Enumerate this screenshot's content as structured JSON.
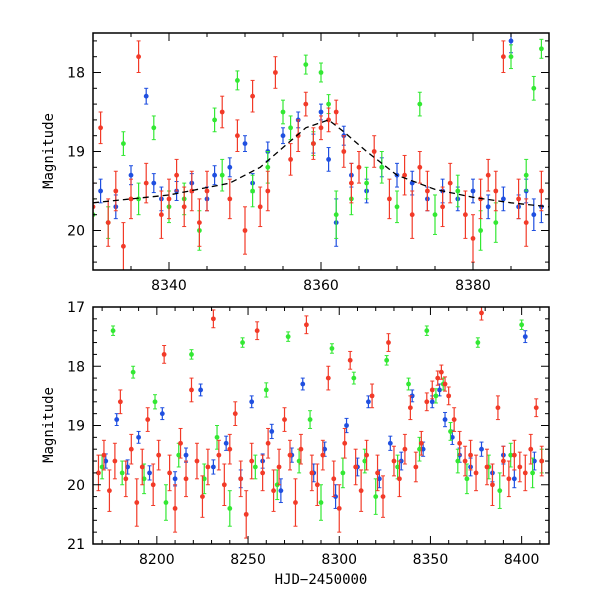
{
  "colors": {
    "blue": "#1f4fe0",
    "green": "#33e833",
    "red": "#f23a28",
    "fit": "#000000"
  },
  "chart_data": [
    {
      "type": "scatter",
      "title": "",
      "xlabel": "",
      "ylabel": "Magnitude",
      "xlim": [
        8330,
        8390
      ],
      "ylim": [
        20.5,
        17.5
      ],
      "y_inverted": true,
      "grid": false,
      "x_ticks": [
        8340,
        8360,
        8380
      ],
      "y_ticks": [
        18,
        19,
        20
      ],
      "x_tick_labels": [
        "8340",
        "8360",
        "8380"
      ],
      "y_tick_labels": [
        "18",
        "19",
        "20"
      ],
      "fit_curve": {
        "x": [
          8330,
          8340,
          8348,
          8352,
          8355,
          8358,
          8361,
          8363,
          8366,
          8370,
          8375,
          8380,
          8385,
          8390
        ],
        "y": [
          19.65,
          19.55,
          19.4,
          19.2,
          18.95,
          18.7,
          18.6,
          18.75,
          19.0,
          19.3,
          19.48,
          19.58,
          19.65,
          19.7
        ]
      },
      "series": [
        {
          "color": "blue",
          "x": [
            8331,
            8333,
            8335,
            8337,
            8338,
            8339,
            8341,
            8343,
            8345,
            8346,
            8348,
            8350,
            8351,
            8353,
            8355,
            8357,
            8359,
            8360,
            8361,
            8362,
            8363,
            8364,
            8366,
            8368,
            8370,
            8372,
            8374,
            8376,
            8378,
            8380,
            8382,
            8384,
            8385,
            8386,
            8387,
            8388,
            8389
          ],
          "y": [
            19.5,
            19.7,
            19.3,
            18.3,
            19.4,
            19.6,
            19.5,
            19.4,
            19.6,
            19.3,
            19.2,
            18.9,
            19.4,
            19.0,
            18.8,
            18.6,
            18.9,
            18.5,
            19.1,
            19.9,
            18.8,
            19.3,
            19.5,
            19.2,
            19.3,
            19.4,
            19.6,
            19.5,
            19.6,
            19.5,
            19.7,
            19.6,
            17.6,
            19.7,
            19.5,
            19.8,
            19.7
          ],
          "err": [
            0.15,
            0.15,
            0.12,
            0.1,
            0.12,
            0.15,
            0.12,
            0.12,
            0.15,
            0.12,
            0.12,
            0.1,
            0.12,
            0.12,
            0.1,
            0.1,
            0.12,
            0.1,
            0.15,
            0.3,
            0.12,
            0.15,
            0.15,
            0.12,
            0.15,
            0.15,
            0.15,
            0.15,
            0.15,
            0.15,
            0.15,
            0.15,
            0.15,
            0.15,
            0.15,
            0.2,
            0.2
          ]
        },
        {
          "color": "green",
          "x": [
            8330,
            8332,
            8334,
            8336,
            8338,
            8340,
            8342,
            8344,
            8346,
            8347,
            8349,
            8351,
            8353,
            8355,
            8356,
            8358,
            8359,
            8360,
            8361,
            8362,
            8364,
            8366,
            8368,
            8370,
            8373,
            8375,
            8378,
            8381,
            8383,
            8385,
            8387,
            8388,
            8389
          ],
          "y": [
            19.8,
            19.9,
            18.9,
            19.6,
            18.7,
            19.7,
            19.6,
            20.0,
            18.6,
            19.3,
            18.1,
            19.5,
            19.2,
            18.5,
            18.7,
            17.9,
            18.9,
            18.0,
            18.4,
            19.8,
            19.6,
            19.4,
            19.2,
            19.7,
            18.4,
            19.8,
            19.5,
            20.0,
            19.9,
            17.8,
            19.3,
            18.2,
            17.7
          ],
          "err": [
            0.2,
            0.2,
            0.15,
            0.2,
            0.15,
            0.2,
            0.2,
            0.25,
            0.15,
            0.2,
            0.12,
            0.2,
            0.2,
            0.15,
            0.15,
            0.12,
            0.15,
            0.12,
            0.12,
            0.3,
            0.2,
            0.2,
            0.2,
            0.2,
            0.15,
            0.25,
            0.2,
            0.25,
            0.25,
            0.15,
            0.2,
            0.15,
            0.12
          ]
        },
        {
          "color": "red",
          "x": [
            8330,
            8331,
            8332,
            8333,
            8334,
            8335,
            8336,
            8337,
            8339,
            8340,
            8341,
            8342,
            8343,
            8344,
            8345,
            8347,
            8348,
            8349,
            8350,
            8351,
            8352,
            8353,
            8354,
            8356,
            8357,
            8358,
            8359,
            8360,
            8361,
            8362,
            8363,
            8364,
            8365,
            8367,
            8369,
            8371,
            8372,
            8373,
            8374,
            8376,
            8377,
            8379,
            8380,
            8381,
            8382,
            8383,
            8384,
            8386,
            8387,
            8389
          ],
          "y": [
            19.7,
            18.7,
            19.9,
            19.5,
            20.2,
            19.6,
            17.8,
            19.4,
            19.8,
            19.6,
            19.3,
            19.7,
            19.5,
            19.9,
            19.5,
            18.5,
            19.6,
            18.8,
            20.0,
            18.3,
            19.7,
            19.5,
            18.0,
            19.1,
            18.8,
            18.4,
            18.9,
            18.7,
            18.6,
            18.5,
            19.0,
            19.4,
            19.2,
            19.0,
            19.6,
            19.3,
            19.8,
            19.2,
            19.5,
            19.7,
            19.4,
            19.8,
            20.1,
            19.6,
            19.3,
            19.5,
            17.8,
            19.6,
            19.9,
            19.5
          ],
          "err": [
            0.3,
            0.2,
            0.3,
            0.25,
            0.3,
            0.25,
            0.2,
            0.25,
            0.3,
            0.25,
            0.2,
            0.25,
            0.25,
            0.3,
            0.25,
            0.2,
            0.25,
            0.2,
            0.3,
            0.2,
            0.25,
            0.25,
            0.2,
            0.2,
            0.2,
            0.15,
            0.2,
            0.15,
            0.15,
            0.15,
            0.2,
            0.25,
            0.2,
            0.2,
            0.25,
            0.25,
            0.3,
            0.2,
            0.25,
            0.25,
            0.25,
            0.3,
            0.3,
            0.25,
            0.2,
            0.25,
            0.2,
            0.25,
            0.3,
            0.25
          ]
        }
      ]
    },
    {
      "type": "scatter",
      "title": "",
      "xlabel": "HJD−2450000",
      "ylabel": "Magnitude",
      "xlim": [
        8165,
        8415
      ],
      "ylim": [
        21,
        17
      ],
      "y_inverted": true,
      "grid": false,
      "x_ticks": [
        8200,
        8250,
        8300,
        8350,
        8400
      ],
      "y_ticks": [
        17,
        18,
        19,
        20,
        21
      ],
      "x_tick_labels": [
        "8200",
        "8250",
        "8300",
        "8350",
        "8400"
      ],
      "y_tick_labels": [
        "17",
        "18",
        "19",
        "20",
        "21"
      ],
      "series": [
        {
          "color": "blue",
          "x": [
            8172,
            8178,
            8184,
            8190,
            8196,
            8203,
            8210,
            8216,
            8224,
            8231,
            8238,
            8246,
            8252,
            8258,
            8263,
            8268,
            8274,
            8280,
            8286,
            8292,
            8298,
            8304,
            8310,
            8316,
            8322,
            8328,
            8334,
            8340,
            8346,
            8351,
            8355,
            8358,
            8362,
            8366,
            8372,
            8378,
            8384,
            8390,
            8396,
            8402,
            8407
          ],
          "y": [
            19.6,
            18.9,
            19.7,
            19.2,
            19.8,
            18.8,
            19.9,
            19.5,
            18.4,
            19.7,
            19.3,
            19.9,
            18.6,
            19.6,
            19.1,
            20.1,
            19.5,
            18.3,
            19.8,
            19.4,
            20.2,
            19.0,
            19.7,
            18.6,
            19.9,
            19.3,
            19.6,
            18.5,
            19.4,
            18.6,
            18.4,
            18.9,
            19.2,
            19.5,
            19.7,
            19.4,
            19.8,
            19.5,
            19.9,
            17.5,
            19.6
          ],
          "err": [
            0.12,
            0.1,
            0.12,
            0.1,
            0.12,
            0.1,
            0.12,
            0.12,
            0.1,
            0.12,
            0.12,
            0.15,
            0.1,
            0.12,
            0.12,
            0.2,
            0.12,
            0.1,
            0.15,
            0.12,
            0.2,
            0.12,
            0.15,
            0.1,
            0.15,
            0.12,
            0.15,
            0.1,
            0.12,
            0.1,
            0.1,
            0.12,
            0.12,
            0.12,
            0.15,
            0.12,
            0.15,
            0.15,
            0.15,
            0.1,
            0.15
          ]
        },
        {
          "color": "green",
          "x": [
            8170,
            8176,
            8181,
            8187,
            8193,
            8199,
            8205,
            8212,
            8219,
            8226,
            8233,
            8240,
            8247,
            8254,
            8260,
            8266,
            8272,
            8278,
            8284,
            8290,
            8296,
            8302,
            8308,
            8314,
            8320,
            8326,
            8332,
            8338,
            8344,
            8348,
            8353,
            8357,
            8361,
            8365,
            8370,
            8376,
            8382,
            8388,
            8394,
            8400,
            8406,
            8411
          ],
          "y": [
            19.7,
            17.4,
            19.8,
            18.1,
            19.9,
            18.6,
            20.3,
            19.5,
            17.8,
            19.9,
            19.2,
            20.4,
            17.6,
            19.7,
            18.4,
            20.0,
            17.5,
            19.6,
            18.9,
            20.3,
            17.7,
            19.8,
            18.2,
            19.6,
            20.2,
            17.9,
            19.7,
            18.3,
            19.4,
            17.4,
            18.5,
            18.3,
            19.1,
            19.6,
            19.9,
            17.6,
            19.7,
            20.1,
            19.5,
            17.3,
            19.8,
            19.6
          ],
          "err": [
            0.2,
            0.08,
            0.2,
            0.1,
            0.25,
            0.12,
            0.3,
            0.2,
            0.08,
            0.25,
            0.2,
            0.3,
            0.08,
            0.2,
            0.12,
            0.25,
            0.08,
            0.2,
            0.15,
            0.3,
            0.08,
            0.25,
            0.1,
            0.2,
            0.3,
            0.08,
            0.2,
            0.1,
            0.2,
            0.08,
            0.12,
            0.1,
            0.15,
            0.2,
            0.25,
            0.08,
            0.2,
            0.3,
            0.2,
            0.08,
            0.25,
            0.2
          ]
        },
        {
          "color": "red",
          "x": [
            8168,
            8171,
            8174,
            8177,
            8180,
            8183,
            8186,
            8189,
            8192,
            8195,
            8198,
            8201,
            8204,
            8207,
            8210,
            8213,
            8216,
            8219,
            8222,
            8225,
            8228,
            8231,
            8234,
            8237,
            8240,
            8243,
            8246,
            8249,
            8252,
            8255,
            8258,
            8261,
            8264,
            8267,
            8270,
            8273,
            8276,
            8279,
            8282,
            8285,
            8288,
            8291,
            8294,
            8297,
            8300,
            8303,
            8306,
            8309,
            8312,
            8315,
            8318,
            8321,
            8324,
            8327,
            8330,
            8333,
            8336,
            8339,
            8342,
            8345,
            8348,
            8351,
            8354,
            8356,
            8358,
            8360,
            8363,
            8366,
            8369,
            8372,
            8375,
            8378,
            8381,
            8384,
            8387,
            8390,
            8393,
            8396,
            8399,
            8402,
            8405,
            8408,
            8411
          ],
          "y": [
            19.8,
            19.5,
            20.1,
            19.6,
            18.6,
            19.9,
            19.4,
            20.3,
            19.7,
            18.9,
            20.0,
            19.5,
            17.8,
            19.8,
            20.4,
            19.3,
            19.9,
            18.4,
            19.6,
            20.2,
            19.7,
            17.2,
            19.5,
            20.0,
            19.4,
            18.8,
            19.9,
            20.5,
            19.6,
            17.4,
            19.8,
            19.3,
            20.1,
            19.7,
            18.9,
            19.5,
            20.3,
            19.4,
            17.3,
            19.8,
            20.0,
            19.5,
            18.2,
            19.9,
            20.4,
            19.3,
            17.9,
            19.7,
            20.1,
            19.5,
            18.5,
            19.8,
            20.2,
            17.6,
            19.6,
            19.9,
            19.4,
            18.7,
            19.7,
            19.3,
            18.6,
            18.4,
            18.2,
            18.1,
            18.3,
            18.5,
            18.9,
            19.3,
            19.6,
            19.5,
            19.8,
            17.1,
            19.7,
            20.0,
            18.7,
            19.6,
            19.9,
            19.5,
            19.7,
            19.8,
            19.4,
            18.7,
            19.6
          ],
          "err": [
            0.3,
            0.25,
            0.35,
            0.3,
            0.2,
            0.3,
            0.25,
            0.4,
            0.3,
            0.2,
            0.35,
            0.25,
            0.15,
            0.3,
            0.4,
            0.25,
            0.3,
            0.2,
            0.3,
            0.35,
            0.3,
            0.15,
            0.25,
            0.35,
            0.25,
            0.2,
            0.3,
            0.4,
            0.3,
            0.15,
            0.3,
            0.25,
            0.35,
            0.3,
            0.2,
            0.25,
            0.4,
            0.25,
            0.15,
            0.3,
            0.35,
            0.25,
            0.2,
            0.3,
            0.4,
            0.25,
            0.15,
            0.3,
            0.35,
            0.25,
            0.2,
            0.3,
            0.35,
            0.15,
            0.25,
            0.3,
            0.25,
            0.2,
            0.25,
            0.2,
            0.15,
            0.15,
            0.12,
            0.12,
            0.12,
            0.15,
            0.2,
            0.2,
            0.25,
            0.25,
            0.3,
            0.12,
            0.3,
            0.35,
            0.2,
            0.25,
            0.3,
            0.25,
            0.25,
            0.3,
            0.25,
            0.15,
            0.25
          ]
        }
      ]
    }
  ]
}
